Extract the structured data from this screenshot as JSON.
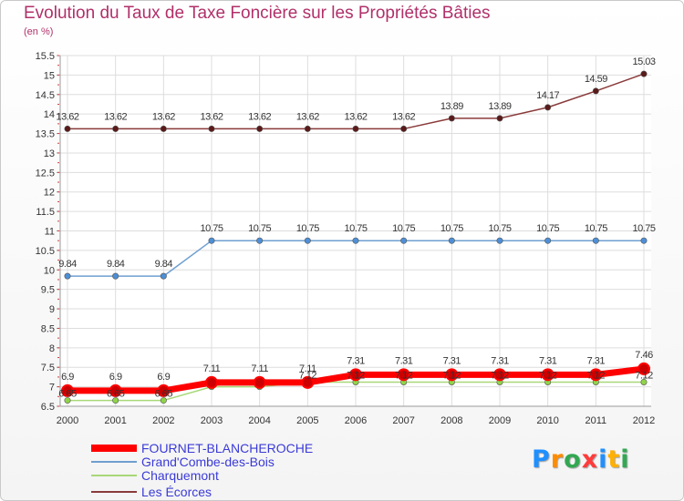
{
  "header": {
    "title": "Evolution du Taux de Taxe Foncière sur les Propriétés Bâties",
    "unit": "(en %)"
  },
  "logo": {
    "text": "Proxiti",
    "colors": [
      "#1e90ff",
      "#ff8c00",
      "#32a852",
      "#ff3b3b",
      "#1e90ff",
      "#ffb000",
      "#32a852"
    ]
  },
  "chart_data": {
    "type": "line",
    "title": "Evolution du Taux de Taxe Foncière sur les Propriétés Bâties",
    "ylabel": "(en %)",
    "xlabel": "",
    "ylim": [
      6.5,
      15.5
    ],
    "y_ticks": [
      "6.5",
      "7",
      "7.5",
      "8",
      "8.5",
      "9",
      "9.5",
      "10",
      "10.5",
      "11",
      "11.5",
      "12",
      "12.5",
      "13",
      "13.5",
      "14",
      "14.5",
      "15",
      "15.5"
    ],
    "x": [
      "2000",
      "2001",
      "2002",
      "2003",
      "2004",
      "2005",
      "2006",
      "2007",
      "2008",
      "2009",
      "2010",
      "2011",
      "2012"
    ],
    "grid": true,
    "legend_position": "bottom-left",
    "series": [
      {
        "name": "FOURNET-BLANCHEROCHE",
        "color": "#ff0000",
        "marker_fill": "#cc0000",
        "values": [
          6.9,
          6.9,
          6.9,
          7.11,
          7.11,
          7.11,
          7.31,
          7.31,
          7.31,
          7.31,
          7.31,
          7.31,
          7.46
        ],
        "labels": [
          "6.9",
          "6.9",
          "6.9",
          "7.11",
          "7.11",
          "7.11",
          "7.31",
          "7.31",
          "7.31",
          "7.31",
          "7.31",
          "7.31",
          "7.46"
        ],
        "label_position": "above"
      },
      {
        "name": "Grand'Combe-des-Bois",
        "color": "#6f9fd0",
        "marker_fill": "#4d8fd6",
        "values": [
          9.84,
          9.84,
          9.84,
          10.75,
          10.75,
          10.75,
          10.75,
          10.75,
          10.75,
          10.75,
          10.75,
          10.75,
          10.75
        ],
        "labels": [
          "9.84",
          "9.84",
          "9.84",
          "10.75",
          "10.75",
          "10.75",
          "10.75",
          "10.75",
          "10.75",
          "10.75",
          "10.75",
          "10.75",
          "10.75"
        ],
        "label_position": "above"
      },
      {
        "name": "Charquemont",
        "color": "#a8d878",
        "marker_fill": "#8fd44a",
        "values": [
          6.65,
          6.65,
          6.65,
          7.0,
          7.0,
          7.12,
          7.12,
          7.12,
          7.12,
          7.12,
          7.12,
          7.12,
          7.12
        ],
        "labels": [
          "6.65",
          "6.65",
          "6.65",
          "",
          "",
          "7.12",
          "7.12",
          "7.12",
          "7.12",
          "7.12",
          "7.12",
          "7.12",
          "7.12"
        ],
        "label_position": "above"
      },
      {
        "name": "Les Écorces",
        "color": "#8a3a3a",
        "marker_fill": "#5a1a1a",
        "values": [
          13.62,
          13.62,
          13.62,
          13.62,
          13.62,
          13.62,
          13.62,
          13.62,
          13.89,
          13.89,
          14.17,
          14.59,
          15.03
        ],
        "labels": [
          "13.62",
          "13.62",
          "13.62",
          "13.62",
          "13.62",
          "13.62",
          "13.62",
          "13.62",
          "13.89",
          "13.89",
          "14.17",
          "14.59",
          "15.03"
        ],
        "label_position": "above"
      }
    ]
  }
}
